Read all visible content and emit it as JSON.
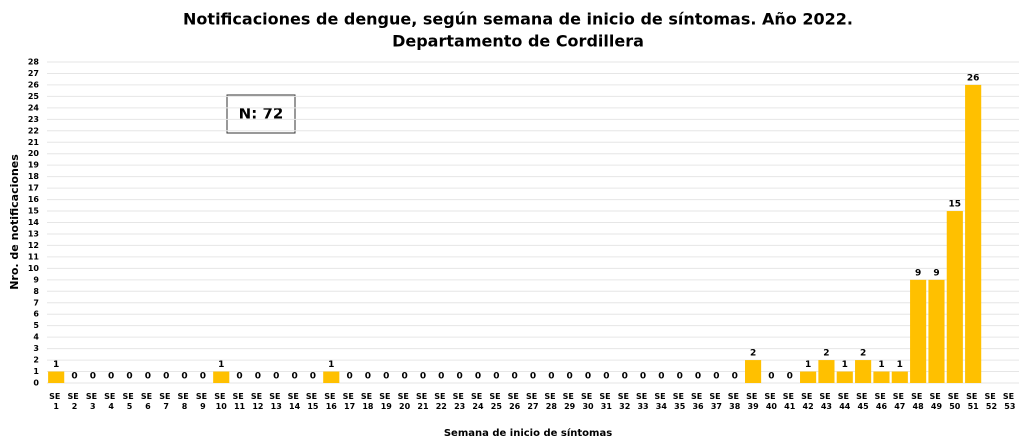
{
  "chart_data": {
    "type": "bar",
    "title": "Notificaciones de dengue, según semana de inicio de síntomas. Año 2022.",
    "subtitle": "Departamento de Cordillera",
    "x_label": "Semana de inicio de síntomas",
    "y_label": "Nro. de notificaciones",
    "annotation": "N: 72",
    "categories": [
      "SE 1",
      "SE 2",
      "SE 3",
      "SE 4",
      "SE 5",
      "SE 6",
      "SE 7",
      "SE 8",
      "SE 9",
      "SE 10",
      "SE 11",
      "SE 12",
      "SE 13",
      "SE 14",
      "SE 15",
      "SE 16",
      "SE 17",
      "SE 18",
      "SE 19",
      "SE 20",
      "SE 21",
      "SE 22",
      "SE 23",
      "SE 24",
      "SE 25",
      "SE 26",
      "SE 27",
      "SE 28",
      "SE 29",
      "SE 30",
      "SE 31",
      "SE 32",
      "SE 33",
      "SE 34",
      "SE 35",
      "SE 36",
      "SE 37",
      "SE 38",
      "SE 39",
      "SE 40",
      "SE 41",
      "SE 42",
      "SE 43",
      "SE 44",
      "SE 45",
      "SE 46",
      "SE 47",
      "SE 48",
      "SE 49",
      "SE 50",
      "SE 51",
      "SE 52",
      "SE 53"
    ],
    "values": [
      1,
      0,
      0,
      0,
      0,
      0,
      0,
      0,
      0,
      1,
      0,
      0,
      0,
      0,
      0,
      1,
      0,
      0,
      0,
      0,
      0,
      0,
      0,
      0,
      0,
      0,
      0,
      0,
      0,
      0,
      0,
      0,
      0,
      0,
      0,
      0,
      0,
      0,
      2,
      0,
      0,
      1,
      2,
      1,
      2,
      1,
      1,
      9,
      9,
      15,
      26,
      null,
      null
    ],
    "color": "#ffc000",
    "ylim": [
      0,
      28
    ],
    "yticks": [
      0,
      1,
      2,
      3,
      4,
      5,
      6,
      7,
      8,
      9,
      10,
      11,
      12,
      13,
      14,
      15,
      16,
      17,
      18,
      19,
      20,
      21,
      22,
      23,
      24,
      25,
      26,
      27,
      28
    ],
    "grid": true
  }
}
